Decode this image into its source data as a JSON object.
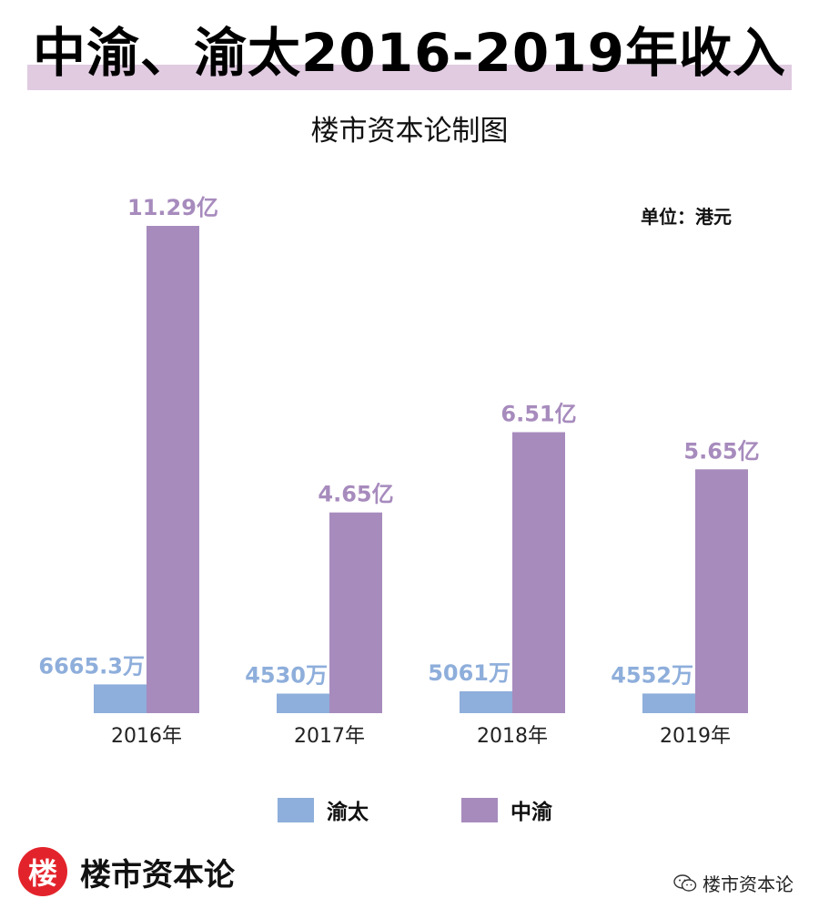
{
  "header": {
    "title": "中渝、渝太2016-2019年收入",
    "subtitle": "楼市资本论制图",
    "unit": "单位：港元"
  },
  "colors": {
    "yutai": "#8eaedb",
    "zhongyu": "#a78bbd",
    "title_bar": "#e0cbe1",
    "logo": "#e3232b"
  },
  "legend": {
    "yutai": "渝太",
    "zhongyu": "中渝"
  },
  "footer": {
    "logo_char": "楼",
    "logo_text": "楼市资本论",
    "watermark": "楼市资本论"
  },
  "chart_data": {
    "type": "bar",
    "categories": [
      "2016年",
      "2017年",
      "2018年",
      "2019年"
    ],
    "series": [
      {
        "name": "渝太",
        "values": [
          0.66653,
          0.453,
          0.5061,
          0.4552
        ],
        "labels": [
          "6665.3万",
          "4530万",
          "5061万",
          "4552万"
        ]
      },
      {
        "name": "中渝",
        "values": [
          11.29,
          4.65,
          6.51,
          5.65
        ],
        "labels": [
          "11.29亿",
          "4.65亿",
          "6.51亿",
          "5.65亿"
        ]
      }
    ],
    "value_unit": "亿港元",
    "title": "中渝、渝太2016-2019年收入",
    "xlabel": "",
    "ylabel": "",
    "grid": false,
    "legend_position": "bottom"
  }
}
